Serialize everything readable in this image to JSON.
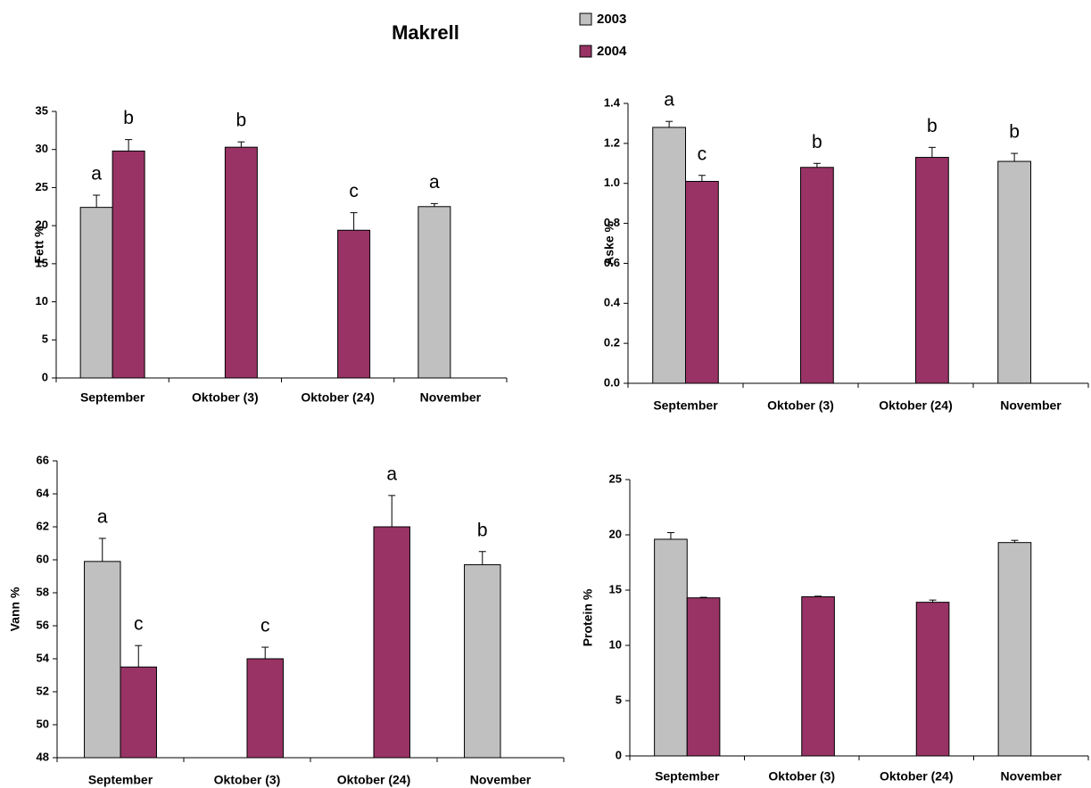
{
  "title": "Makrell",
  "chart_data": [
    {
      "type": "bar",
      "ylabel": "Fett %",
      "categories": [
        "September",
        "Oktober (3)",
        "Oktober (24)",
        "November"
      ],
      "series": [
        {
          "name": "2003",
          "color": "#c0c0c0",
          "values": [
            22.4,
            null,
            null,
            22.5
          ],
          "errors": [
            1.6,
            null,
            null,
            0.4
          ],
          "annotations": [
            "a",
            null,
            null,
            "a"
          ]
        },
        {
          "name": "2004",
          "color": "#993366",
          "values": [
            29.8,
            30.3,
            19.4,
            null
          ],
          "errors": [
            1.5,
            0.7,
            2.3,
            null
          ],
          "annotations": [
            "b",
            "b",
            "c",
            null
          ]
        }
      ],
      "ylim": [
        0,
        35
      ],
      "yticks": [
        0,
        5,
        10,
        15,
        20,
        25,
        30,
        35
      ]
    },
    {
      "type": "bar",
      "ylabel": "Aske %",
      "categories": [
        "September",
        "Oktober (3)",
        "Oktober (24)",
        "November"
      ],
      "series": [
        {
          "name": "2003",
          "color": "#c0c0c0",
          "values": [
            1.28,
            null,
            null,
            1.11
          ],
          "errors": [
            0.03,
            null,
            null,
            0.04
          ],
          "annotations": [
            "a",
            null,
            null,
            "b"
          ]
        },
        {
          "name": "2004",
          "color": "#993366",
          "values": [
            1.01,
            1.08,
            1.13,
            null
          ],
          "errors": [
            0.03,
            0.02,
            0.05,
            null
          ],
          "annotations": [
            "c",
            "b",
            "b",
            null
          ]
        }
      ],
      "ylim": [
        0,
        1.4
      ],
      "yticks": [
        {
          "value": 0,
          "label": "0.0"
        },
        0.2,
        0.4,
        0.6,
        0.8,
        {
          "value": 1,
          "label": "1.0"
        },
        1.2,
        1.4
      ]
    },
    {
      "type": "bar",
      "ylabel": "Vann %",
      "categories": [
        "September",
        "Oktober (3)",
        "Oktober (24)",
        "November"
      ],
      "series": [
        {
          "name": "2003",
          "color": "#c0c0c0",
          "values": [
            59.9,
            null,
            null,
            59.7
          ],
          "errors": [
            1.4,
            null,
            null,
            0.8
          ],
          "annotations": [
            "a",
            null,
            null,
            "b"
          ]
        },
        {
          "name": "2004",
          "color": "#993366",
          "values": [
            53.5,
            54.0,
            62.0,
            null
          ],
          "errors": [
            1.3,
            0.7,
            1.9,
            null
          ],
          "annotations": [
            "c",
            "c",
            "a",
            null
          ]
        }
      ],
      "ylim": [
        48,
        66
      ],
      "yticks": [
        48,
        50,
        52,
        54,
        56,
        58,
        60,
        62,
        64,
        66
      ]
    },
    {
      "type": "bar",
      "ylabel": "Protein %",
      "categories": [
        "September",
        "Oktober (3)",
        "Oktober (24)",
        "November"
      ],
      "series": [
        {
          "name": "2003",
          "color": "#c0c0c0",
          "values": [
            19.6,
            null,
            null,
            19.3
          ],
          "errors": [
            0.6,
            null,
            null,
            0.2
          ]
        },
        {
          "name": "2004",
          "color": "#993366",
          "values": [
            14.3,
            14.4,
            13.9,
            null
          ],
          "errors": [
            0.05,
            0.05,
            0.2,
            null
          ]
        }
      ],
      "ylim": [
        0,
        25
      ],
      "yticks": [
        0,
        5,
        10,
        15,
        20,
        25
      ]
    }
  ]
}
